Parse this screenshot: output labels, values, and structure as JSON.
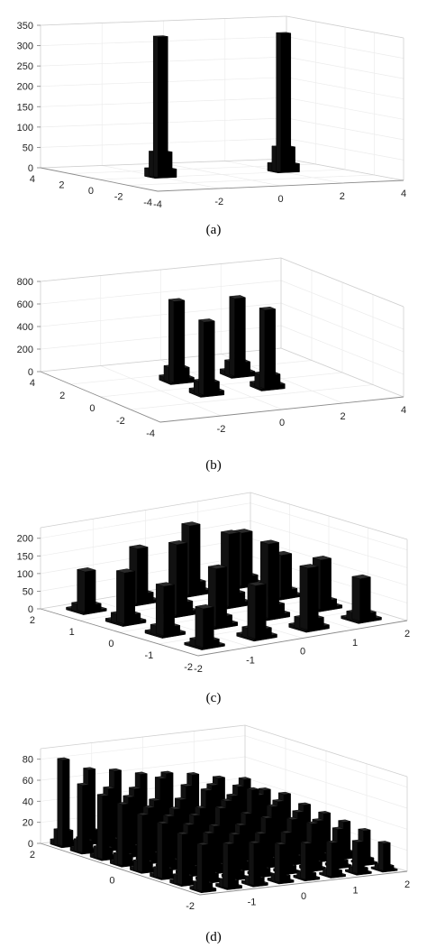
{
  "chart_data": [
    {
      "type": "bar3d",
      "panel_label": "a",
      "zticks": [
        "0",
        "50",
        "100",
        "150",
        "200",
        "250",
        "300",
        "350"
      ],
      "zlim": [
        0,
        350
      ],
      "xticks": [
        "-4",
        "-2",
        "0",
        "2",
        "4"
      ],
      "yticks": [
        "4",
        "2",
        "0",
        "-2",
        "-4"
      ],
      "towers": [
        {
          "x": -2,
          "y": 0,
          "z": 345
        },
        {
          "x": 2,
          "y": 0,
          "z": 340
        }
      ]
    },
    {
      "type": "bar3d",
      "panel_label": "b",
      "zticks": [
        "0",
        "200",
        "400",
        "600",
        "800"
      ],
      "zlim": [
        0,
        800
      ],
      "xticks": [
        "-2",
        "0",
        "2",
        "4"
      ],
      "yticks": [
        "4",
        "2",
        "0",
        "-2",
        "-4"
      ],
      "towers": [
        {
          "x": -1,
          "y": 1,
          "z": 720
        },
        {
          "x": 1,
          "y": 1,
          "z": 690
        },
        {
          "x": -1,
          "y": -1,
          "z": 650
        },
        {
          "x": 1,
          "y": -1,
          "z": 700
        }
      ]
    },
    {
      "type": "bar3d",
      "panel_label": "c",
      "zticks": [
        "0",
        "50",
        "100",
        "150",
        "200"
      ],
      "zlim": [
        0,
        230
      ],
      "xticks": [
        "-2",
        "-1",
        "0",
        "1",
        "2"
      ],
      "yticks": [
        "2",
        "1",
        "0",
        "-1",
        "-2"
      ],
      "towers": [
        {
          "x": -1.5,
          "y": 1.5,
          "z": 115
        },
        {
          "x": -0.5,
          "y": 1.5,
          "z": 155
        },
        {
          "x": 0.5,
          "y": 1.5,
          "z": 195
        },
        {
          "x": 1.5,
          "y": 1.5,
          "z": 150
        },
        {
          "x": -1.5,
          "y": 0.5,
          "z": 145
        },
        {
          "x": -0.5,
          "y": 0.5,
          "z": 200
        },
        {
          "x": 0.5,
          "y": 0.5,
          "z": 205
        },
        {
          "x": 1.5,
          "y": 0.5,
          "z": 120
        },
        {
          "x": -1.5,
          "y": -0.5,
          "z": 140
        },
        {
          "x": -0.5,
          "y": -0.5,
          "z": 165
        },
        {
          "x": 0.5,
          "y": -0.5,
          "z": 210
        },
        {
          "x": 1.5,
          "y": -0.5,
          "z": 140
        },
        {
          "x": -1.5,
          "y": -1.5,
          "z": 110
        },
        {
          "x": -0.5,
          "y": -1.5,
          "z": 150
        },
        {
          "x": 0.5,
          "y": -1.5,
          "z": 175
        },
        {
          "x": 1.5,
          "y": -1.5,
          "z": 120
        }
      ]
    },
    {
      "type": "bar3d",
      "panel_label": "d",
      "zticks": [
        "0",
        "20",
        "40",
        "60",
        "80"
      ],
      "zlim": [
        0,
        90
      ],
      "xticks": [
        "-1",
        "0",
        "1",
        "2"
      ],
      "yticks": [
        "2",
        "0",
        "-2"
      ],
      "grid_n": 8,
      "grid_range": [
        -1.75,
        1.75
      ],
      "heights": [
        [
          82,
          70,
          66,
          60,
          58,
          54,
          48,
          44
        ],
        [
          64,
          58,
          55,
          62,
          52,
          50,
          46,
          40
        ],
        [
          60,
          56,
          50,
          48,
          54,
          46,
          44,
          42
        ],
        [
          58,
          52,
          48,
          46,
          50,
          58,
          44,
          38
        ],
        [
          54,
          50,
          48,
          52,
          44,
          48,
          40,
          36
        ],
        [
          52,
          48,
          44,
          42,
          46,
          42,
          38,
          34
        ],
        [
          48,
          46,
          42,
          40,
          38,
          44,
          36,
          32
        ],
        [
          44,
          42,
          40,
          36,
          34,
          32,
          30,
          26
        ]
      ]
    }
  ],
  "captions": {
    "a": "(a)",
    "b": "(b)",
    "c": "(c)",
    "d": "(d)"
  }
}
